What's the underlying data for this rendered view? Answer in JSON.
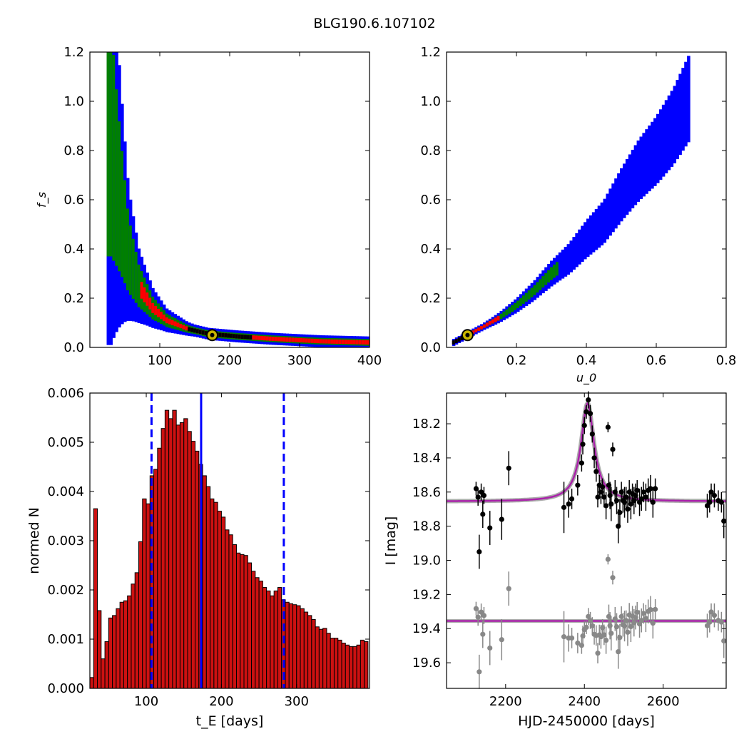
{
  "figure": {
    "title": "BLG190.6.107102"
  },
  "chart_data": [
    {
      "id": "p1",
      "type": "heatmap",
      "title": "",
      "xlabel": "",
      "ylabel": "f_s",
      "xlim": [
        0,
        400
      ],
      "ylim": [
        0,
        1.2
      ],
      "xticks": [
        100,
        200,
        300,
        400
      ],
      "yticks": [
        0.0,
        0.2,
        0.4,
        0.6,
        0.8,
        1.0,
        1.2
      ],
      "levels": {
        "blue": "#0000ff",
        "green": "#008000",
        "red": "#ff0000",
        "black": "#000000"
      },
      "curve_tE": [
        30,
        40,
        55,
        70,
        90,
        110,
        140,
        170,
        210,
        260,
        330,
        400
      ],
      "curve_fs": [
        0.85,
        0.65,
        0.38,
        0.25,
        0.16,
        0.11,
        0.075,
        0.055,
        0.045,
        0.035,
        0.025,
        0.02
      ],
      "best_fit": {
        "tE": 175,
        "fs": 0.05
      }
    },
    {
      "id": "p2",
      "type": "heatmap",
      "title": "",
      "xlabel": "u_0",
      "ylabel": "",
      "xlim": [
        0,
        0.8
      ],
      "ylim": [
        0,
        1.2
      ],
      "xticks": [
        0.2,
        0.4,
        0.6,
        0.8
      ],
      "yticks": [
        0.0,
        0.2,
        0.4,
        0.6,
        0.8,
        1.0,
        1.2
      ],
      "levels": {
        "blue": "#0000ff",
        "green": "#008000",
        "red": "#ff0000",
        "black": "#000000"
      },
      "curve_u0": [
        0.02,
        0.06,
        0.1,
        0.15,
        0.2,
        0.25,
        0.3,
        0.35,
        0.4,
        0.45,
        0.5,
        0.55,
        0.6,
        0.65,
        0.7
      ],
      "curve_fs": [
        0.02,
        0.05,
        0.08,
        0.12,
        0.17,
        0.23,
        0.3,
        0.36,
        0.44,
        0.51,
        0.62,
        0.72,
        0.8,
        0.9,
        1.03
      ],
      "best_fit": {
        "u0": 0.06,
        "fs": 0.05
      }
    },
    {
      "id": "p3",
      "type": "bar",
      "title": "",
      "xlabel": "t_E [days]",
      "ylabel": "normed N",
      "xlim": [
        25,
        397
      ],
      "ylim": [
        0,
        0.006
      ],
      "xticks": [
        100,
        200,
        300
      ],
      "yticks": [
        0.0,
        0.001,
        0.002,
        0.003,
        0.004,
        0.005,
        0.006
      ],
      "ytick_labels": [
        "0.000",
        "0.001",
        "0.002",
        "0.003",
        "0.004",
        "0.005",
        "0.006"
      ],
      "bin_start": 25,
      "bin_width": 5,
      "values": [
        0.00022,
        0.00365,
        0.00158,
        0.0006,
        0.00095,
        0.00143,
        0.00148,
        0.00162,
        0.00175,
        0.00178,
        0.00188,
        0.00212,
        0.00235,
        0.00298,
        0.00385,
        0.00375,
        0.00432,
        0.00445,
        0.00488,
        0.00528,
        0.00565,
        0.00548,
        0.00565,
        0.00535,
        0.0054,
        0.00548,
        0.00522,
        0.00502,
        0.00482,
        0.00455,
        0.00432,
        0.0041,
        0.00385,
        0.00378,
        0.0036,
        0.00348,
        0.00322,
        0.00312,
        0.00292,
        0.00275,
        0.00272,
        0.0027,
        0.00255,
        0.00238,
        0.00225,
        0.00218,
        0.00205,
        0.00198,
        0.00188,
        0.00198,
        0.00205,
        0.0018,
        0.00175,
        0.00172,
        0.0017,
        0.00168,
        0.00162,
        0.00155,
        0.00148,
        0.0014,
        0.00125,
        0.0012,
        0.00122,
        0.00112,
        0.00102,
        0.00102,
        0.00098,
        0.00092,
        0.00088,
        0.00085,
        0.00085,
        0.00088,
        0.00098,
        0.00095
      ],
      "bar_color": "#cc1111",
      "median": 173,
      "lower": 107,
      "upper": 283,
      "line_color": "#0000ff"
    },
    {
      "id": "p4",
      "type": "scatter",
      "title": "",
      "xlabel": "HJD-2450000 [days]",
      "ylabel": "I [mag]",
      "xlim": [
        2050,
        2760
      ],
      "ylim": [
        19.75,
        18.02
      ],
      "inverted_y": true,
      "xticks": [
        2200,
        2400,
        2600
      ],
      "yticks": [
        18.2,
        18.4,
        18.6,
        18.8,
        19.0,
        19.2,
        19.4,
        19.6
      ],
      "ytick_labels": [
        "18.2",
        "18.4",
        "18.6",
        "18.8",
        "19.0",
        "19.2",
        "19.4",
        "19.6"
      ],
      "model": {
        "t0": 2408,
        "base_mag": 18.655,
        "peak_mag": 18.08,
        "width": 20,
        "color": "#aa22aa"
      },
      "residual_offset": 0.7,
      "points": [
        [
          2125,
          18.58,
          0.04
        ],
        [
          2130,
          18.63,
          0.05
        ],
        [
          2133,
          18.95,
          0.1
        ],
        [
          2138,
          18.6,
          0.05
        ],
        [
          2142,
          18.73,
          0.08
        ],
        [
          2145,
          18.62,
          0.05
        ],
        [
          2160,
          18.81,
          0.1
        ],
        [
          2190,
          18.76,
          0.12
        ],
        [
          2208,
          18.46,
          0.1
        ],
        [
          2348,
          18.69,
          0.15
        ],
        [
          2360,
          18.67,
          0.08
        ],
        [
          2368,
          18.64,
          0.06
        ],
        [
          2383,
          18.56,
          0.06
        ],
        [
          2393,
          18.43,
          0.05
        ],
        [
          2396,
          18.32,
          0.06
        ],
        [
          2400,
          18.21,
          0.05
        ],
        [
          2405,
          18.13,
          0.04
        ],
        [
          2410,
          18.06,
          0.05
        ],
        [
          2415,
          18.14,
          0.05
        ],
        [
          2420,
          18.26,
          0.05
        ],
        [
          2425,
          18.4,
          0.06
        ],
        [
          2430,
          18.48,
          0.06
        ],
        [
          2434,
          18.63,
          0.06
        ],
        [
          2438,
          18.56,
          0.06
        ],
        [
          2442,
          18.6,
          0.07
        ],
        [
          2446,
          18.57,
          0.05
        ],
        [
          2450,
          18.63,
          0.06
        ],
        [
          2455,
          18.68,
          0.08
        ],
        [
          2460,
          18.22,
          0.03
        ],
        [
          2462,
          18.56,
          0.07
        ],
        [
          2465,
          18.62,
          0.08
        ],
        [
          2468,
          18.67,
          0.1
        ],
        [
          2472,
          18.35,
          0.04
        ],
        [
          2478,
          18.6,
          0.07
        ],
        [
          2482,
          18.65,
          0.08
        ],
        [
          2486,
          18.8,
          0.1
        ],
        [
          2490,
          18.72,
          0.08
        ],
        [
          2494,
          18.6,
          0.06
        ],
        [
          2498,
          18.65,
          0.07
        ],
        [
          2502,
          18.66,
          0.09
        ],
        [
          2506,
          18.63,
          0.06
        ],
        [
          2510,
          18.7,
          0.08
        ],
        [
          2514,
          18.6,
          0.07
        ],
        [
          2518,
          18.67,
          0.09
        ],
        [
          2522,
          18.61,
          0.06
        ],
        [
          2526,
          18.65,
          0.08
        ],
        [
          2530,
          18.62,
          0.07
        ],
        [
          2534,
          18.59,
          0.06
        ],
        [
          2540,
          18.66,
          0.08
        ],
        [
          2545,
          18.64,
          0.07
        ],
        [
          2550,
          18.6,
          0.06
        ],
        [
          2556,
          18.63,
          0.08
        ],
        [
          2562,
          18.59,
          0.07
        ],
        [
          2568,
          18.58,
          0.08
        ],
        [
          2574,
          18.66,
          0.09
        ],
        [
          2580,
          18.58,
          0.06
        ],
        [
          2712,
          18.68,
          0.07
        ],
        [
          2718,
          18.66,
          0.06
        ],
        [
          2722,
          18.6,
          0.05
        ],
        [
          2730,
          18.62,
          0.07
        ],
        [
          2740,
          18.65,
          0.06
        ],
        [
          2748,
          18.66,
          0.06
        ],
        [
          2754,
          18.77,
          0.1
        ]
      ],
      "data_color": "#000000",
      "residual_color": "#888888"
    }
  ]
}
